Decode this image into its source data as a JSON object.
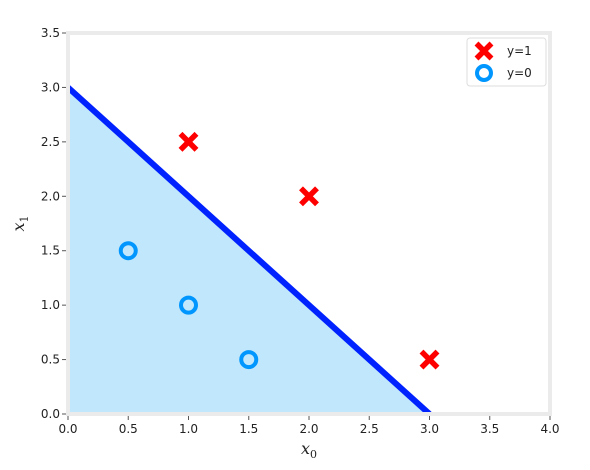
{
  "chart_data": {
    "type": "scatter",
    "title": "",
    "xlabel": {
      "base": "x",
      "sub": "0"
    },
    "ylabel": {
      "base": "x",
      "sub": "1"
    },
    "xlim": [
      0,
      4
    ],
    "ylim": [
      0,
      3.5
    ],
    "xticks": [
      "0.0",
      "0.5",
      "1.0",
      "1.5",
      "2.0",
      "2.5",
      "3.0",
      "3.5",
      "4.0"
    ],
    "yticks": [
      "0.0",
      "0.5",
      "1.0",
      "1.5",
      "2.0",
      "2.5",
      "3.0",
      "3.5"
    ],
    "grid": false,
    "legend_position": "top-right",
    "series": [
      {
        "name": "y=1",
        "marker": "x",
        "color": "#ff0000",
        "x": [
          1.0,
          2.0,
          3.0
        ],
        "y": [
          2.5,
          2.0,
          0.5
        ]
      },
      {
        "name": "y=0",
        "marker": "o-hollow",
        "color": "#0096ff",
        "x": [
          0.5,
          1.0,
          1.5
        ],
        "y": [
          1.5,
          1.0,
          0.5
        ]
      }
    ],
    "decision_boundary": {
      "x": [
        0,
        3
      ],
      "y": [
        3,
        0
      ],
      "color": "#0022ff"
    },
    "shaded_region": {
      "vertices": [
        [
          0,
          0
        ],
        [
          0,
          3
        ],
        [
          3,
          0
        ]
      ],
      "color": "#c0e7fb"
    }
  }
}
